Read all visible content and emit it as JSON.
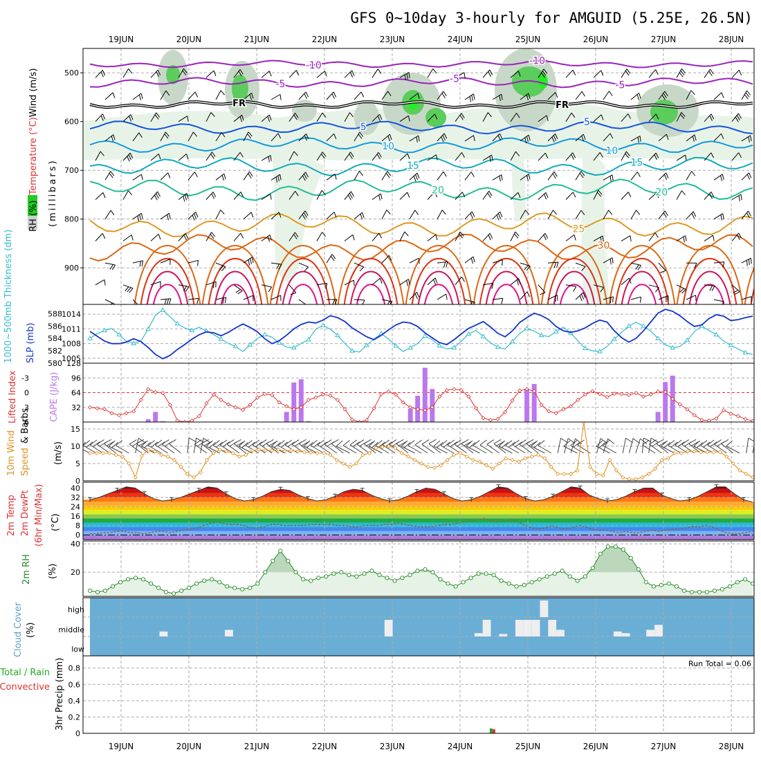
{
  "title": "GFS 0~10day 3-hourly for AMGUID (5.25E, 26.5N)",
  "dates": [
    "19JUN",
    "20JUN",
    "21JUN",
    "22JUN",
    "23JUN",
    "24JUN",
    "25JUN",
    "26JUN",
    "27JUN",
    "28JUN"
  ],
  "run_total": "Run Total = 0.06",
  "colors": {
    "rh_green": "#22cc22",
    "freezing": "#000000",
    "wind_barb": "#000000",
    "thickness": "#33bbcc",
    "slp": "#1133cc",
    "lifted": "#dd3333",
    "cape": "#bb77ee",
    "wind10m": "#e09020",
    "barb10m": "#444444",
    "rh2m": "#228822",
    "cloud_bg": "#6aaed6"
  },
  "chart_data": [
    {
      "type": "contour",
      "id": "upper_air",
      "ylabel_parts": [
        "RH (%)",
        "Temperature (°C)",
        "Wind (m/s)"
      ],
      "yaxis_title": "(millibars)",
      "ylim": [
        450,
        975
      ],
      "yticks": [
        "500",
        "600",
        "700",
        "800",
        "900"
      ],
      "freezing_label": "FR",
      "isotherms": [
        {
          "t": -10,
          "p": 482,
          "color": "#9922bb",
          "labels": [
            "-10",
            "-10"
          ]
        },
        {
          "t": -5,
          "p": 520,
          "color": "#9922bb",
          "labels": [
            "-5",
            "-5",
            "-5"
          ]
        },
        {
          "t": 5,
          "p": 612,
          "color": "#1155dd",
          "labels": [
            "5",
            "5"
          ]
        },
        {
          "t": 10,
          "p": 648,
          "color": "#1199dd",
          "labels": [
            "10",
            "10"
          ]
        },
        {
          "t": 15,
          "p": 692,
          "color": "#11aabb",
          "labels": [
            "15",
            "15"
          ]
        },
        {
          "t": 20,
          "p": 740,
          "color": "#22bb99",
          "labels": [
            "20",
            "20"
          ]
        },
        {
          "t": 25,
          "p": 812,
          "color": "#dd9922",
          "labels": [
            "25"
          ]
        },
        {
          "t": 30,
          "p": 858,
          "color": "#dd6611",
          "labels": [
            "30"
          ]
        }
      ]
    },
    {
      "type": "line",
      "id": "thickness_slp",
      "ylabel_left": "1000~500mb Thickness (dm)",
      "ylabel_right": "SLP (mb)",
      "thickness_ticks": [
        "580",
        "582",
        "584",
        "586",
        "588"
      ],
      "slp_ticks": [
        "1005",
        "1008",
        "1011",
        "1014"
      ],
      "thickness_range": [
        580,
        589.5
      ],
      "slp_range": [
        1004,
        1016
      ],
      "series": [
        {
          "name": "Thickness (dm)",
          "values": [
            584,
            584.8,
            585.3,
            585.6,
            584.6,
            583.6,
            583.2,
            583.6,
            585.5,
            587.8,
            588.6,
            587.5,
            586.4,
            585.7,
            585.3,
            585.8,
            585.2,
            584.6,
            583.9,
            583.2,
            582.7,
            581.9,
            583.0,
            584.0,
            584.6,
            584.2,
            583.3,
            582.6,
            582.5,
            583.2,
            583.8,
            585.5,
            586.1,
            585.5,
            584.5,
            583.2,
            582.0,
            581.8,
            582.9,
            583.9,
            584.8,
            583.9,
            582.8,
            581.9,
            582.5,
            583.2,
            584.4,
            583.8,
            582.8,
            582.3,
            582.5,
            583.6,
            584.7,
            585.3,
            584.3,
            583.3,
            582.6,
            582.3,
            583.5,
            584.8,
            585.6,
            585.2,
            584.5,
            584.3,
            585.1,
            585.8,
            584.9,
            583.6,
            582.4,
            582.0,
            581.9,
            582.7,
            583.9,
            585.0,
            586.0,
            586.6,
            586.0,
            585.2,
            584.0,
            583.0,
            582.5,
            582.7,
            583.7,
            585.1,
            586.0,
            585.3,
            584.6,
            583.6,
            582.9,
            582.3,
            581.7,
            581.4
          ]
        },
        {
          "name": "SLP (mb)",
          "values": [
            1010.5,
            1009.5,
            1008.5,
            1008,
            1008,
            1008.3,
            1009,
            1008.4,
            1007.2,
            1005.8,
            1004.9,
            1005.6,
            1006.8,
            1007.8,
            1008.9,
            1009.8,
            1010.4,
            1010.2,
            1009.6,
            1010.3,
            1011.2,
            1012,
            1011.3,
            1010.4,
            1009,
            1008,
            1008.6,
            1009.7,
            1011,
            1011.9,
            1012.4,
            1012.2,
            1012.8,
            1013.7,
            1013.3,
            1012.5,
            1011.2,
            1010.3,
            1009.4,
            1008.8,
            1009.7,
            1010.8,
            1011.8,
            1012.4,
            1012.2,
            1011.5,
            1010.2,
            1009.2,
            1008.2,
            1007.8,
            1008.8,
            1010,
            1011.1,
            1011.8,
            1012.5,
            1011.4,
            1010.1,
            1009.4,
            1010.6,
            1012.3,
            1013.3,
            1014.2,
            1013.7,
            1012.9,
            1011.5,
            1010.6,
            1010.3,
            1010.6,
            1011.2,
            1012.1,
            1012.8,
            1012.4,
            1010.6,
            1009.2,
            1008.3,
            1009.1,
            1010.6,
            1012.4,
            1014.2,
            1015,
            1014.6,
            1013.7,
            1012.5,
            1011.5,
            1011.8,
            1013.1,
            1013.9,
            1013.6,
            1012.7,
            1012.9,
            1013.3,
            1013.6
          ]
        }
      ]
    },
    {
      "type": "bar+line",
      "id": "lifted_cape",
      "ylabel_left": "Lifted Index",
      "ylabel_right": "CAPE (J/kg)",
      "li_ticks": [
        "-3",
        "0",
        "3",
        "6"
      ],
      "li_range": [
        -6,
        6
      ],
      "cape_ticks": [
        "32",
        "64",
        "96",
        "128"
      ],
      "cape_range": [
        0,
        128
      ],
      "series": [
        {
          "name": "Lifted Index",
          "values": [
            3,
            3.2,
            3.4,
            4.2,
            4.6,
            4.2,
            3.8,
            1.5,
            -0.7,
            -0.1,
            0.1,
            2.5,
            5.7,
            6,
            5.7,
            4.8,
            2.2,
            0.4,
            1.5,
            2.4,
            3,
            3.5,
            2.5,
            1,
            0.3,
            0.5,
            2,
            2.8,
            3.4,
            3,
            1.5,
            1,
            0.4,
            0.6,
            1.5,
            3.4,
            5.5,
            6,
            5.6,
            3.2,
            0.3,
            -0.2,
            0.4,
            2,
            3,
            3.4,
            3.6,
            3,
            0.8,
            -0.5,
            -0.7,
            -0.5,
            0.8,
            3.2,
            5.2,
            5.6,
            5.4,
            4,
            1.6,
            -0.4,
            -0.7,
            -0.3,
            2.5,
            3.8,
            4.2,
            3.4,
            2.8,
            1.5,
            0.4,
            -0.3,
            0.3,
            0.9,
            0.2,
            0.3,
            0.5,
            0.1,
            0.8,
            0.4,
            -0.2,
            -0.1,
            1.3,
            2.4,
            3.4,
            4.6,
            5.6,
            5.7,
            5.3,
            3.6,
            4.3,
            4.8,
            5.4,
            5.8
          ]
        },
        {
          "name": "CAPE (J/kg)",
          "values": [
            0,
            0,
            0,
            0,
            0,
            0,
            0,
            0,
            6,
            22,
            2,
            0,
            0,
            0,
            0,
            0,
            0,
            0,
            0,
            0,
            0,
            0,
            0,
            0,
            0,
            0,
            0,
            22,
            86,
            93,
            2,
            0,
            0,
            0,
            0,
            0,
            0,
            0,
            0,
            0,
            0,
            0,
            0,
            0,
            29,
            57,
            118,
            72,
            0,
            0,
            0,
            0,
            0,
            0,
            0,
            0,
            0,
            0,
            0,
            0,
            72,
            83,
            0,
            0,
            0,
            0,
            0,
            0,
            0,
            0,
            0,
            0,
            0,
            0,
            0,
            0,
            0,
            0,
            22,
            87,
            101,
            0,
            0,
            0,
            0,
            0,
            0,
            0,
            0,
            0,
            0,
            0
          ]
        }
      ]
    },
    {
      "type": "line",
      "id": "wind10m",
      "ylabel": "10m Wind Speed & Barbs",
      "yunit": "(m/s)",
      "yticks": [
        "0",
        "5",
        "10",
        "15"
      ],
      "ylim": [
        0,
        17
      ],
      "series": [
        {
          "name": "10m Wind Speed (m/s)",
          "values": [
            8,
            8,
            8,
            8,
            7.5,
            7,
            5,
            1,
            7.2,
            9,
            8.5,
            7.5,
            7,
            6,
            4,
            2,
            1,
            2.5,
            6,
            8,
            9,
            8.5,
            8,
            7,
            7.5,
            8.8,
            9,
            8.8,
            8.8,
            9,
            8.6,
            8.8,
            8.5,
            8.3,
            8.2,
            8,
            8,
            7.5,
            6,
            5,
            4,
            5,
            7.5,
            8,
            9.5,
            9.8,
            10,
            9.5,
            8,
            7,
            6,
            5,
            4,
            3.8,
            4.5,
            6,
            7.5,
            8,
            7,
            6,
            5.5,
            4.5,
            3.5,
            5,
            6.5,
            6,
            5.5,
            6.5,
            7,
            7.5,
            6.5,
            4,
            2,
            2,
            2,
            3,
            17,
            4,
            2,
            1.5,
            6,
            3,
            1,
            0.5,
            0.5,
            1,
            2,
            3.5,
            6,
            6.5,
            8,
            8,
            8.5,
            8.5,
            8.3,
            8.3,
            8.3,
            8.3,
            7,
            5,
            3,
            2,
            1
          ]
        }
      ]
    },
    {
      "type": "area+line",
      "id": "temp2m",
      "ylabel": "2m Temp / 2m DewPt (6hr Min/Max)",
      "yunit": "(°C)",
      "yticks": [
        "0",
        "8",
        "16",
        "24",
        "32",
        "40"
      ],
      "ylim": [
        -4,
        45
      ],
      "band_colors": [
        "#b07ae0",
        "#7ab6f0",
        "#4488ee",
        "#22bbdd",
        "#22aa44",
        "#88cc44",
        "#ddee22",
        "#ffcc00",
        "#ffaa33",
        "#ff7711",
        "#ee3311",
        "#cc1111",
        "#880000",
        "#555555"
      ],
      "series": [
        {
          "name": "2m Temp (°C)",
          "values": [
            30,
            32,
            35,
            38,
            41,
            40,
            35,
            31,
            29,
            30,
            32,
            35,
            38,
            41,
            40,
            35,
            31,
            29,
            30,
            33,
            37,
            39,
            38,
            34,
            31,
            29,
            30,
            33,
            37,
            39,
            38,
            34,
            31,
            29,
            30,
            33,
            37,
            40,
            39,
            35,
            31,
            29,
            30,
            33,
            37,
            41,
            40,
            35,
            31,
            29,
            30,
            33,
            37,
            41,
            40,
            34,
            31,
            29,
            30,
            33,
            37,
            40,
            40,
            34,
            31,
            29,
            30,
            33,
            37,
            41,
            41,
            35,
            30,
            28
          ]
        },
        {
          "name": "2m DewPt (°C)",
          "values": [
            1,
            1,
            2,
            2,
            3,
            3,
            2,
            2,
            1,
            2,
            3,
            3,
            2,
            3,
            4,
            5,
            6,
            8,
            10,
            11,
            10,
            9,
            9,
            8,
            6,
            6,
            7,
            9,
            9,
            8,
            8,
            8,
            8,
            9,
            9,
            9,
            9,
            8,
            8,
            7,
            7,
            8,
            8,
            8,
            9,
            9,
            10,
            9,
            8,
            7,
            7,
            7,
            8,
            9,
            9,
            10,
            11,
            12,
            13,
            14,
            12,
            11,
            12,
            13,
            11,
            8,
            6,
            5,
            6,
            8,
            6,
            5,
            6,
            8,
            7,
            5,
            4,
            4,
            3,
            2,
            3,
            2,
            2,
            3,
            4,
            3,
            4,
            5,
            5,
            6,
            7,
            7,
            8,
            7,
            4,
            2,
            1,
            1,
            2,
            3
          ]
        }
      ]
    },
    {
      "type": "area",
      "id": "rh2m",
      "ylabel": "2m RH",
      "yunit": "(%)",
      "yticks": [
        "20",
        "40"
      ],
      "ylim": [
        3,
        42
      ],
      "series": [
        {
          "name": "2m RH (%)",
          "values": [
            7,
            6,
            7,
            10,
            13,
            15,
            16,
            15,
            12,
            9,
            6,
            5,
            7,
            9,
            12,
            14,
            15,
            13,
            10,
            9,
            8,
            9,
            12,
            20,
            28,
            35,
            28,
            20,
            15,
            14,
            16,
            17,
            19,
            20,
            18,
            17,
            19,
            21,
            18,
            16,
            14,
            16,
            18,
            21,
            22,
            20,
            15,
            12,
            10,
            13,
            16,
            19,
            19,
            18,
            14,
            12,
            10,
            11,
            13,
            15,
            17,
            19,
            21,
            17,
            14,
            17,
            23,
            33,
            38,
            38,
            36,
            30,
            22,
            13,
            10,
            11,
            12,
            10,
            7,
            6,
            6,
            6,
            7,
            8,
            10,
            13,
            15,
            12
          ]
        }
      ]
    },
    {
      "type": "bar",
      "id": "cloud_cover",
      "ylabel": "Cloud Cover",
      "yunit": "(%)",
      "level_labels": [
        "high",
        "middle",
        "low"
      ],
      "blocks": [
        {
          "t": 9,
          "level": "middle",
          "amount": 0.3
        },
        {
          "t": 17,
          "level": "middle",
          "amount": 0.4
        },
        {
          "t": 36.5,
          "level": "middle",
          "amount": 1.0
        },
        {
          "t": 47.5,
          "level": "middle",
          "amount": 0.2
        },
        {
          "t": 48.5,
          "level": "middle",
          "amount": 1.3
        },
        {
          "t": 50.5,
          "level": "middle",
          "amount": 0.15
        },
        {
          "t": 52.5,
          "level": "middle",
          "amount": 1.3
        },
        {
          "t": 53.5,
          "level": "middle",
          "amount": 1.0
        },
        {
          "t": 54.5,
          "level": "middle",
          "amount": 1.2
        },
        {
          "t": 55.5,
          "level": "high",
          "amount": 1.0
        },
        {
          "t": 56.5,
          "level": "middle",
          "amount": 1.0
        },
        {
          "t": 57.5,
          "level": "middle",
          "amount": 0.4
        },
        {
          "t": 64.5,
          "level": "middle",
          "amount": 0.3
        },
        {
          "t": 65.5,
          "level": "middle",
          "amount": 0.2
        },
        {
          "t": 68.5,
          "level": "middle",
          "amount": 0.4
        },
        {
          "t": 69.5,
          "level": "middle",
          "amount": 0.7
        }
      ]
    },
    {
      "type": "bar",
      "id": "precip",
      "ylabel_total": "Total / Rain",
      "ylabel_conv": "Convective",
      "ylabel": "3hr Precip (mm)",
      "yticks": [
        "0",
        "0.2",
        "0.4",
        "0.6",
        "0.8"
      ],
      "ylim": [
        0,
        0.95
      ],
      "series": [
        {
          "name": "Total / Rain",
          "color": "#22aa22",
          "points": [
            {
              "t": 49.2,
              "value": 0.06
            }
          ]
        },
        {
          "name": "Convective",
          "color": "#dd3333",
          "points": [
            {
              "t": 49.2,
              "value": 0.05
            }
          ]
        }
      ]
    }
  ]
}
